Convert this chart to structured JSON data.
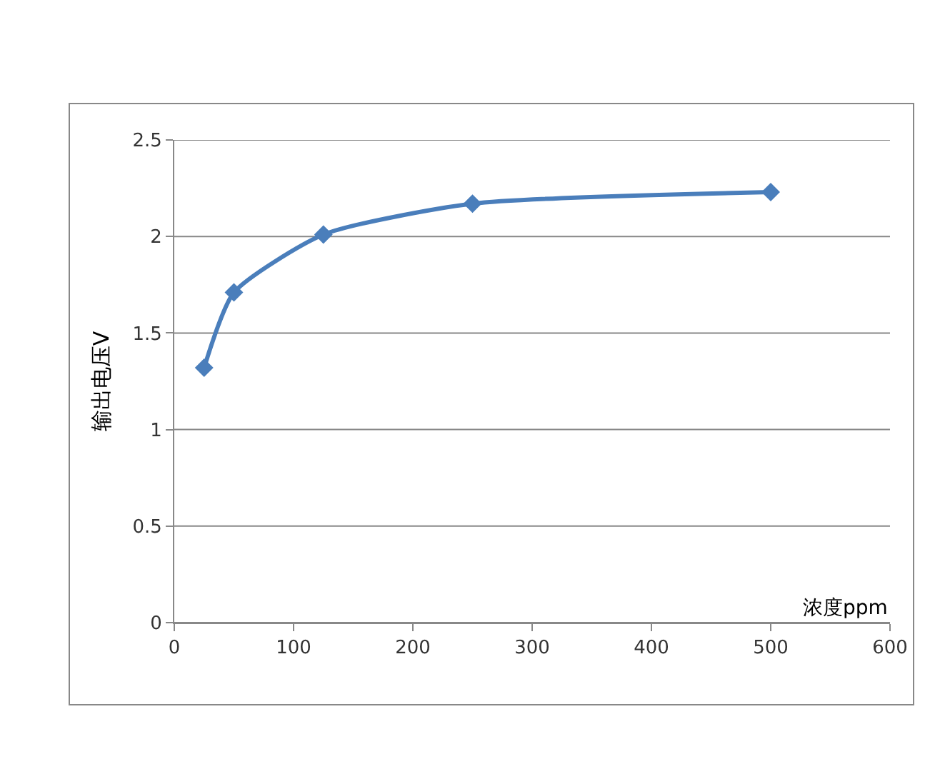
{
  "chart_data": {
    "type": "line",
    "xlabel": "浓度ppm",
    "ylabel": "输出电压V",
    "x": [
      25,
      50,
      125,
      250,
      500
    ],
    "series": [
      {
        "color": "#4a7ebb",
        "values": [
          1.32,
          1.71,
          2.01,
          2.17,
          2.23
        ]
      }
    ],
    "xlim": [
      0,
      600
    ],
    "xticks": [
      0,
      100,
      200,
      300,
      400,
      500,
      600
    ],
    "ylim": [
      0,
      2.5
    ],
    "yticks": [
      0,
      0.5,
      1,
      1.5,
      2,
      2.5
    ],
    "grid": "y",
    "marker": "diamond",
    "line_style": "solid"
  }
}
